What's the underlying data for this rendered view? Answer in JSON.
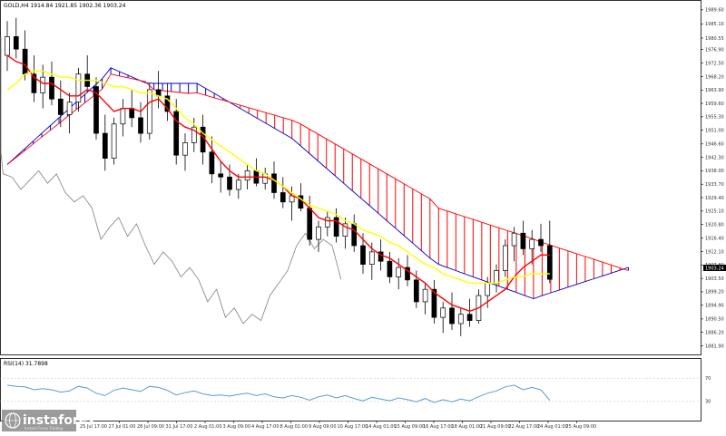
{
  "chart_data": {
    "type": "candlestick",
    "instrument_label": "GOLD,H4  1914.84 1921.85 1902.36 1903.24",
    "price_axis": {
      "ticks": [
        "1989.60",
        "1985.10",
        "1980.55",
        "1976.90",
        "1972.50",
        "1968.20",
        "1963.90",
        "1959.60",
        "1955.30",
        "1951.00",
        "1946.60",
        "1942.30",
        "1938.00",
        "1933.70",
        "1929.40",
        "1925.10",
        "1920.80",
        "1916.40",
        "1912.10",
        "1907.80",
        "1903.50",
        "1899.20",
        "1894.90",
        "1890.50",
        "1886.20",
        "1881.90"
      ],
      "current_price_label": "1903.24"
    },
    "x_axis": {
      "ticks": [
        "25 Jul 17:00",
        "27 Jul 01:00",
        "28 Jul 09:00",
        "31 Jul 17:00",
        "2 Aug 01:00",
        "3 Aug 09:00",
        "4 Aug 17:00",
        "8 Aug 01:00",
        "9 Aug 09:00",
        "10 Aug 17:00",
        "14 Aug 01:00",
        "15 Aug 09:00",
        "16 Aug 17:00",
        "18 Aug 01:00",
        "21 Aug 09:00",
        "22 Aug 17:00",
        "24 Aug 01:00",
        "25 Aug 09:00"
      ]
    },
    "candles_ohlc": [
      [
        1975.0,
        1986.0,
        1970.0,
        1981.0
      ],
      [
        1981.0,
        1987.0,
        1974.0,
        1977.0
      ],
      [
        1977.0,
        1983.0,
        1967.0,
        1969.0
      ],
      [
        1969.0,
        1975.0,
        1960.0,
        1963.0
      ],
      [
        1963.0,
        1972.0,
        1958.0,
        1968.0
      ],
      [
        1968.0,
        1973.0,
        1959.0,
        1961.0
      ],
      [
        1961.0,
        1967.0,
        1952.0,
        1956.0
      ],
      [
        1956.0,
        1963.0,
        1950.0,
        1960.0
      ],
      [
        1960.0,
        1971.0,
        1957.0,
        1969.0
      ],
      [
        1969.0,
        1975.0,
        1963.0,
        1965.0
      ],
      [
        1965.0,
        1968.0,
        1948.0,
        1950.0
      ],
      [
        1950.0,
        1956.0,
        1938.0,
        1942.0
      ],
      [
        1942.0,
        1955.0,
        1940.0,
        1953.0
      ],
      [
        1953.0,
        1961.0,
        1949.0,
        1958.0
      ],
      [
        1958.0,
        1964.0,
        1952.0,
        1955.0
      ],
      [
        1955.0,
        1960.0,
        1947.0,
        1950.0
      ],
      [
        1950.0,
        1966.0,
        1948.0,
        1964.0
      ],
      [
        1964.0,
        1970.0,
        1958.0,
        1962.0
      ],
      [
        1962.0,
        1966.0,
        1954.0,
        1957.0
      ],
      [
        1957.0,
        1961.0,
        1940.0,
        1943.0
      ],
      [
        1943.0,
        1950.0,
        1938.0,
        1947.0
      ],
      [
        1947.0,
        1955.0,
        1944.0,
        1952.0
      ],
      [
        1952.0,
        1956.0,
        1940.0,
        1944.0
      ],
      [
        1944.0,
        1949.0,
        1934.0,
        1937.0
      ],
      [
        1937.0,
        1941.0,
        1931.0,
        1936.0
      ],
      [
        1936.0,
        1940.0,
        1930.0,
        1932.0
      ],
      [
        1932.0,
        1937.0,
        1929.0,
        1935.0
      ],
      [
        1935.0,
        1940.0,
        1932.0,
        1938.0
      ],
      [
        1938.0,
        1942.0,
        1933.0,
        1934.0
      ],
      [
        1934.0,
        1939.0,
        1932.0,
        1937.0
      ],
      [
        1937.0,
        1941.0,
        1929.0,
        1931.0
      ],
      [
        1931.0,
        1936.0,
        1926.0,
        1928.0
      ],
      [
        1928.0,
        1933.0,
        1922.0,
        1930.0
      ],
      [
        1930.0,
        1934.0,
        1925.0,
        1926.0
      ],
      [
        1926.0,
        1930.0,
        1914.0,
        1916.0
      ],
      [
        1916.0,
        1922.0,
        1912.0,
        1920.0
      ],
      [
        1920.0,
        1925.0,
        1917.0,
        1923.0
      ],
      [
        1923.0,
        1926.0,
        1915.0,
        1917.0
      ],
      [
        1917.0,
        1923.0,
        1913.0,
        1921.0
      ],
      [
        1921.0,
        1924.0,
        1912.0,
        1914.0
      ],
      [
        1914.0,
        1918.0,
        1905.0,
        1908.0
      ],
      [
        1908.0,
        1915.0,
        1903.0,
        1912.0
      ],
      [
        1912.0,
        1916.0,
        1906.0,
        1909.0
      ],
      [
        1909.0,
        1912.0,
        1902.0,
        1904.0
      ],
      [
        1904.0,
        1910.0,
        1900.0,
        1907.0
      ],
      [
        1907.0,
        1911.0,
        1901.0,
        1903.0
      ],
      [
        1903.0,
        1906.0,
        1894.0,
        1896.0
      ],
      [
        1896.0,
        1902.0,
        1892.0,
        1900.0
      ],
      [
        1900.0,
        1903.0,
        1889.0,
        1891.0
      ],
      [
        1891.0,
        1896.0,
        1886.0,
        1894.0
      ],
      [
        1894.0,
        1899.0,
        1887.0,
        1889.0
      ],
      [
        1889.0,
        1894.0,
        1885.0,
        1892.0
      ],
      [
        1892.0,
        1897.0,
        1888.0,
        1890.0
      ],
      [
        1890.0,
        1900.0,
        1889.0,
        1898.0
      ],
      [
        1898.0,
        1904.0,
        1894.0,
        1902.0
      ],
      [
        1902.0,
        1908.0,
        1899.0,
        1906.0
      ],
      [
        1906.0,
        1916.0,
        1904.0,
        1914.0
      ],
      [
        1914.0,
        1920.0,
        1909.0,
        1918.0
      ],
      [
        1918.0,
        1922.0,
        1911.0,
        1913.0
      ],
      [
        1913.0,
        1919.0,
        1908.0,
        1916.0
      ],
      [
        1916.0,
        1921.0,
        1912.0,
        1914.0
      ],
      [
        1914.0,
        1922.0,
        1902.0,
        1903.2
      ]
    ],
    "series": [
      {
        "values": [
          1975,
          1973,
          1972,
          1968,
          1966,
          1966,
          1964,
          1962,
          1962,
          1964,
          1963,
          1960,
          1957,
          1958,
          1958,
          1957,
          1960,
          1961,
          1958,
          1954,
          1952,
          1951,
          1949,
          1945,
          1941,
          1938,
          1936,
          1936,
          1936,
          1936,
          1935,
          1933,
          1930,
          1929,
          1926,
          1923,
          1922,
          1922,
          1920,
          1919,
          1916,
          1913,
          1911,
          1910,
          1908,
          1906,
          1904,
          1902,
          1899,
          1897,
          1895,
          1894,
          1893,
          1894,
          1896,
          1898,
          1900,
          1904,
          1907,
          1909,
          1911,
          1911
        ],
        "color": "#ff0000"
      },
      {
        "values": [
          1964,
          1966,
          1969,
          1970,
          1970,
          1969,
          1968,
          1968,
          1967,
          1967,
          1967,
          1966,
          1965,
          1965,
          1964,
          1963,
          1963,
          1962,
          1961,
          1958,
          1955,
          1953,
          1950,
          1948,
          1946,
          1944,
          1942,
          1940,
          1938,
          1937,
          1935,
          1933,
          1931,
          1929,
          1927,
          1926,
          1925,
          1924,
          1922,
          1921,
          1919,
          1918,
          1917,
          1915,
          1914,
          1912,
          1910,
          1908,
          1907,
          1905,
          1904,
          1903,
          1902,
          1902,
          1902,
          1902,
          1903,
          1904,
          1904,
          1905,
          1905,
          1905
        ],
        "color": "#ffff00"
      }
    ],
    "rsi": {
      "label": "RSI(14) 31.7898",
      "ticks": [
        "70",
        "30"
      ],
      "values": [
        58,
        56,
        55,
        50,
        52,
        50,
        46,
        48,
        56,
        53,
        44,
        40,
        49,
        53,
        50,
        47,
        56,
        54,
        49,
        41,
        45,
        48,
        43,
        40,
        41,
        39,
        42,
        44,
        40,
        43,
        38,
        36,
        40,
        37,
        32,
        38,
        41,
        36,
        40,
        35,
        31,
        37,
        34,
        31,
        36,
        33,
        29,
        35,
        28,
        33,
        29,
        34,
        31,
        38,
        44,
        48,
        55,
        58,
        50,
        54,
        50,
        32
      ]
    },
    "colors": {
      "bullish_cloud": "#0000cc",
      "bearish_cloud": "#ff0000",
      "tenkan": "#ff0000",
      "kijun": "#ffff00",
      "chikou": "#808080",
      "rsi": "#5b9bd5"
    },
    "logo": {
      "name": "instaforex",
      "tagline": "Instant Forex Trading"
    }
  }
}
